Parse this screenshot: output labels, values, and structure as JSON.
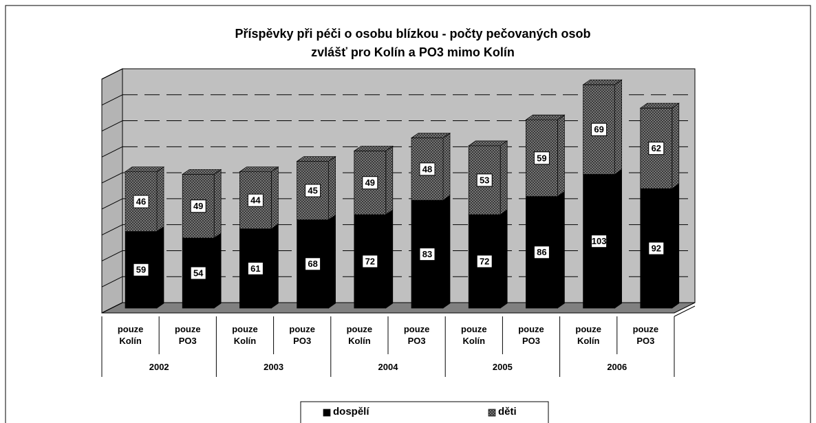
{
  "chart_data": {
    "type": "bar3d_stacked",
    "title": "Příspěvky při péči o osobu blízkou - počty pečovaných osob\nzvlášť pro Kolín a PO3 mimo Kolín",
    "categories": [
      "pouze\nKolín",
      "pouze\nPO3",
      "pouze\nKolín",
      "pouze\nPO3",
      "pouze\nKolín",
      "pouze\nPO3",
      "pouze\nKolín",
      "pouze\nPO3",
      "pouze\nKolín",
      "pouze\nPO3"
    ],
    "groups": [
      "2002",
      "2003",
      "2004",
      "2005",
      "2006"
    ],
    "series": [
      {
        "name": "dospělí",
        "color": "#000000",
        "values": [
          59,
          54,
          61,
          68,
          72,
          83,
          72,
          86,
          103,
          92
        ]
      },
      {
        "name": "děti",
        "color": "#3a3a3a",
        "values": [
          46,
          49,
          44,
          45,
          49,
          48,
          53,
          59,
          69,
          62
        ]
      }
    ],
    "ylim": [
      0,
      180
    ],
    "yticks": [
      0,
      20,
      40,
      60,
      80,
      100,
      120,
      140,
      160,
      180
    ],
    "grid": true,
    "legend": "bottom"
  }
}
